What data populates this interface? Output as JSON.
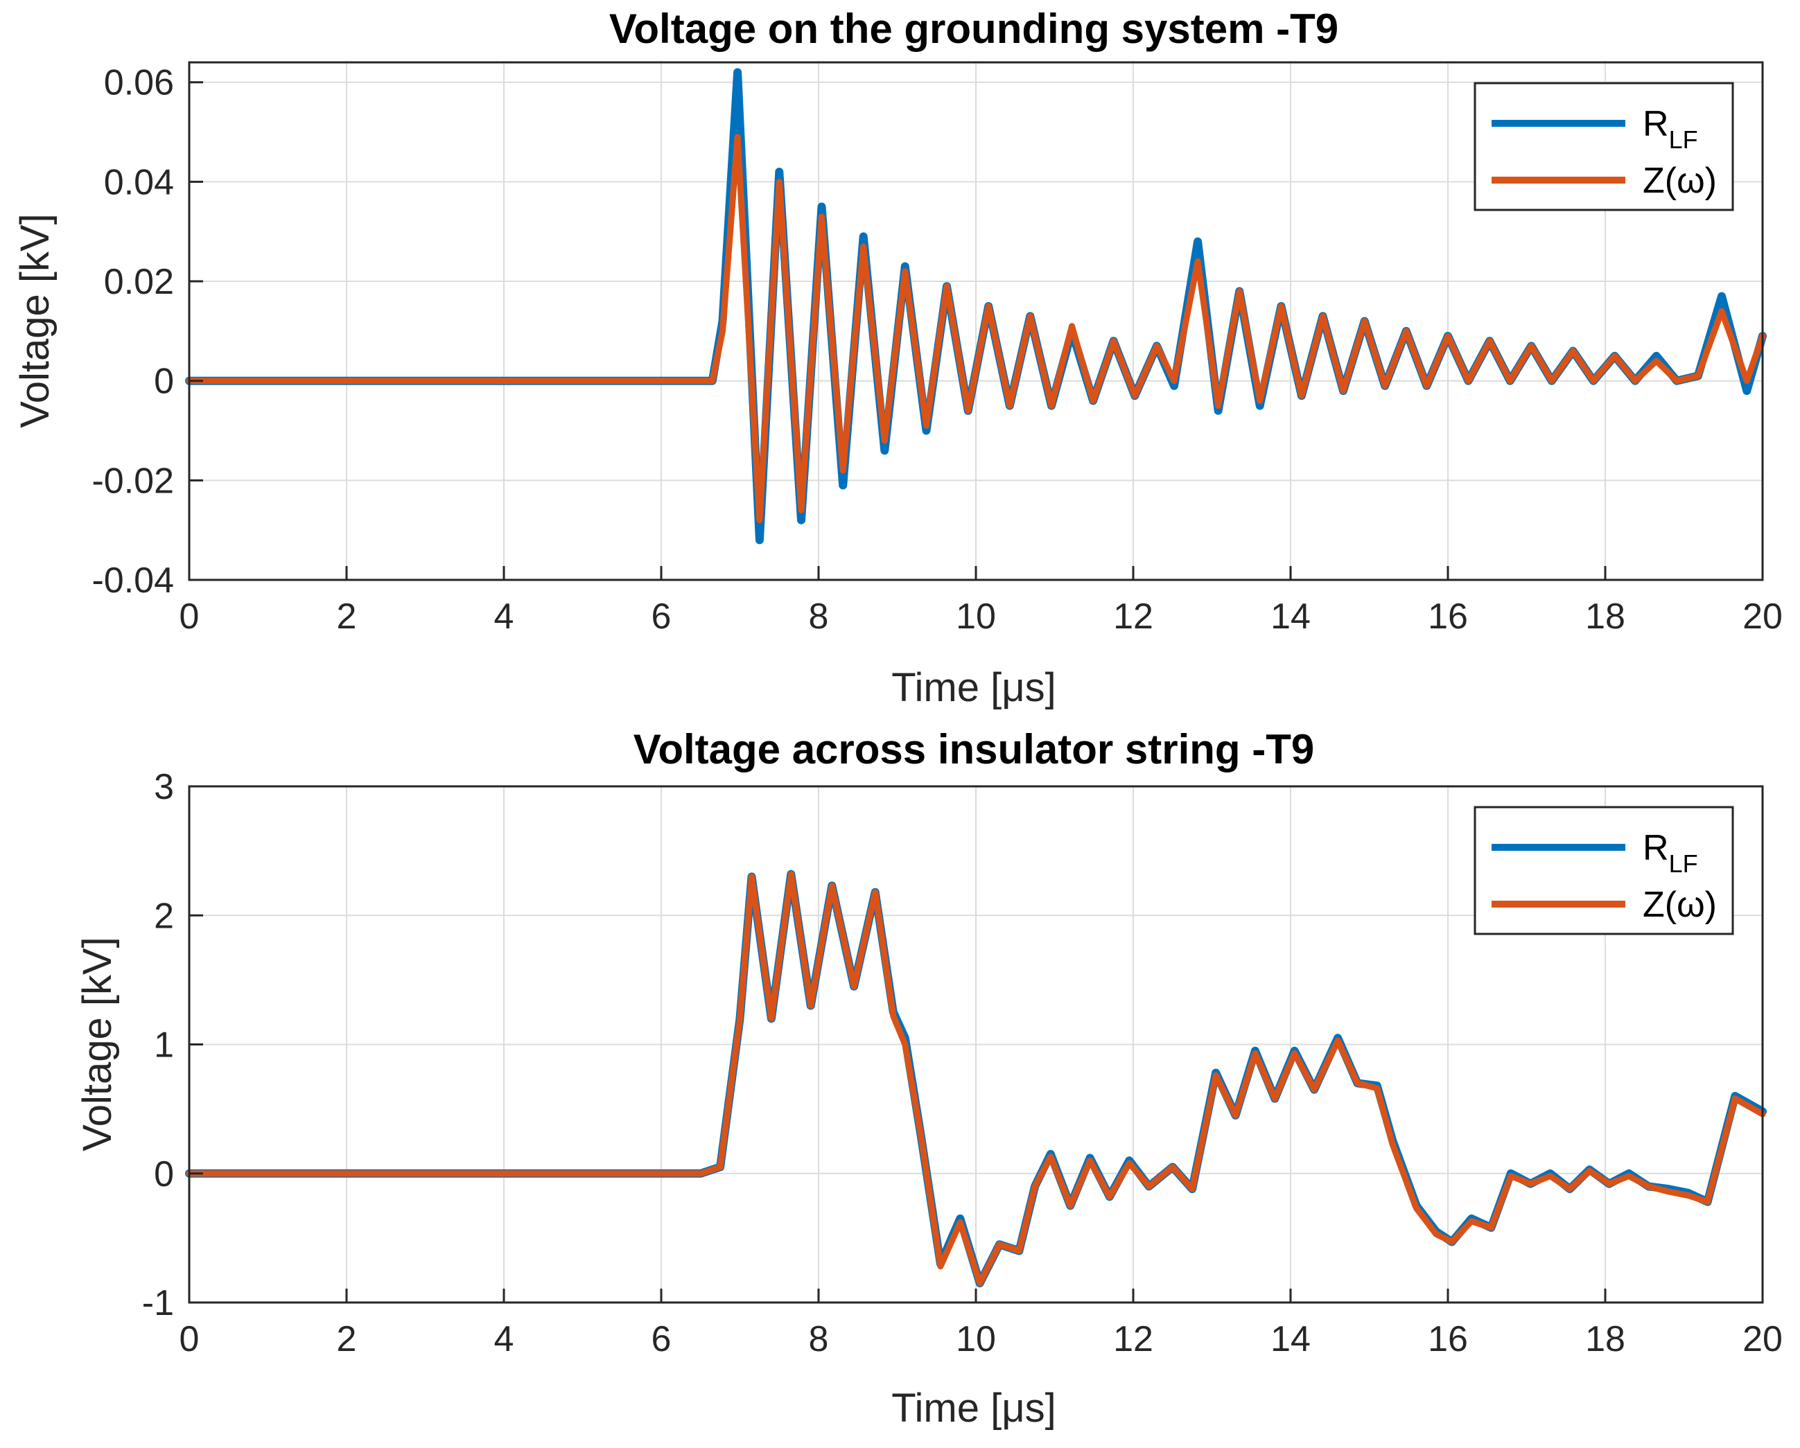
{
  "chart_data": [
    {
      "type": "line",
      "title": "Voltage on the grounding system -T9",
      "xlabel": "Time [μs]",
      "ylabel": "Voltage [kV]",
      "xlim": [
        0,
        20
      ],
      "ylim": [
        -0.04,
        0.064
      ],
      "xticks": [
        0,
        2,
        4,
        6,
        8,
        10,
        12,
        14,
        16,
        18,
        20
      ],
      "xtick_labels": [
        "0",
        "2",
        "4",
        "6",
        "8",
        "10",
        "12",
        "14",
        "16",
        "18",
        "20"
      ],
      "yticks": [
        -0.04,
        -0.02,
        0,
        0.02,
        0.04,
        0.06
      ],
      "ytick_labels": [
        "-0.04",
        "-0.02",
        "0",
        "0.02",
        "0.04",
        "0.06"
      ],
      "grid": true,
      "legend_position": "top-right",
      "series": [
        {
          "name": "R_LF",
          "label_main": "R",
          "label_sub": "LF",
          "color": "#0072BD",
          "x": [
            0,
            6.65,
            6.78,
            6.97,
            7.25,
            7.5,
            7.78,
            8.04,
            8.31,
            8.57,
            8.84,
            9.1,
            9.37,
            9.63,
            9.9,
            10.16,
            10.43,
            10.69,
            10.96,
            11.22,
            11.49,
            11.75,
            12.02,
            12.3,
            12.52,
            12.82,
            13.08,
            13.35,
            13.61,
            13.88,
            14.14,
            14.41,
            14.67,
            14.94,
            15.2,
            15.47,
            15.73,
            16.0,
            16.26,
            16.53,
            16.79,
            17.06,
            17.32,
            17.59,
            17.85,
            18.12,
            18.38,
            18.65,
            18.91,
            19.18,
            19.48,
            19.8,
            20.0
          ],
          "y": [
            0,
            0,
            0.012,
            0.062,
            -0.032,
            0.042,
            -0.028,
            0.035,
            -0.021,
            0.029,
            -0.014,
            0.023,
            -0.01,
            0.019,
            -0.006,
            0.015,
            -0.005,
            0.013,
            -0.005,
            0.01,
            -0.004,
            0.008,
            -0.003,
            0.007,
            -0.001,
            0.028,
            -0.006,
            0.018,
            -0.005,
            0.015,
            -0.003,
            0.013,
            -0.002,
            0.012,
            -0.001,
            0.01,
            -0.001,
            0.009,
            0.0,
            0.008,
            0.0,
            0.007,
            0.0,
            0.006,
            0.0,
            0.005,
            0.0,
            0.005,
            0.0,
            0.001,
            0.017,
            -0.002,
            0.009
          ]
        },
        {
          "name": "Z(ω)",
          "label_main": "Z(ω)",
          "label_sub": "",
          "color": "#D95319",
          "x": [
            0,
            6.65,
            6.78,
            6.97,
            7.25,
            7.5,
            7.78,
            8.04,
            8.31,
            8.57,
            8.84,
            9.1,
            9.37,
            9.63,
            9.9,
            10.16,
            10.43,
            10.69,
            10.96,
            11.22,
            11.49,
            11.75,
            12.02,
            12.3,
            12.52,
            12.82,
            13.08,
            13.35,
            13.61,
            13.88,
            14.14,
            14.41,
            14.67,
            14.94,
            15.2,
            15.47,
            15.73,
            16.0,
            16.26,
            16.53,
            16.79,
            17.06,
            17.32,
            17.59,
            17.85,
            18.12,
            18.38,
            18.65,
            18.91,
            19.18,
            19.48,
            19.8,
            20.0
          ],
          "y": [
            0,
            0,
            0.01,
            0.049,
            -0.028,
            0.04,
            -0.026,
            0.033,
            -0.018,
            0.027,
            -0.012,
            0.022,
            -0.009,
            0.019,
            -0.006,
            0.015,
            -0.005,
            0.013,
            -0.005,
            0.011,
            -0.004,
            0.008,
            -0.003,
            0.007,
            0.0,
            0.024,
            -0.005,
            0.018,
            -0.004,
            0.015,
            -0.003,
            0.013,
            -0.002,
            0.012,
            -0.001,
            0.01,
            -0.001,
            0.009,
            0.0,
            0.008,
            0.0,
            0.007,
            0.0,
            0.006,
            0.0,
            0.005,
            0.0,
            0.004,
            0.0,
            0.001,
            0.014,
            0.0,
            0.009
          ]
        }
      ]
    },
    {
      "type": "line",
      "title": "Voltage across insulator string -T9",
      "xlabel": "Time [μs]",
      "ylabel": "Voltage [kV]",
      "xlim": [
        0,
        20
      ],
      "ylim": [
        -1,
        3
      ],
      "xticks": [
        0,
        2,
        4,
        6,
        8,
        10,
        12,
        14,
        16,
        18,
        20
      ],
      "xtick_labels": [
        "0",
        "2",
        "4",
        "6",
        "8",
        "10",
        "12",
        "14",
        "16",
        "18",
        "20"
      ],
      "yticks": [
        -1,
        0,
        1,
        2,
        3
      ],
      "ytick_labels": [
        "-1",
        "0",
        "1",
        "2",
        "3"
      ],
      "grid": true,
      "legend_position": "top-right",
      "series": [
        {
          "name": "R_LF",
          "label_main": "R",
          "label_sub": "LF",
          "color": "#0072BD",
          "x": [
            0,
            6.5,
            6.75,
            7.0,
            7.15,
            7.4,
            7.65,
            7.9,
            8.17,
            8.45,
            8.72,
            8.95,
            9.1,
            9.3,
            9.55,
            9.8,
            10.05,
            10.3,
            10.55,
            10.75,
            10.95,
            11.2,
            11.45,
            11.7,
            11.95,
            12.2,
            12.5,
            12.75,
            13.05,
            13.3,
            13.55,
            13.8,
            14.05,
            14.3,
            14.6,
            14.85,
            15.1,
            15.3,
            15.6,
            15.85,
            16.05,
            16.3,
            16.55,
            16.8,
            17.05,
            17.3,
            17.55,
            17.8,
            18.05,
            18.3,
            18.55,
            18.8,
            19.05,
            19.3,
            19.65,
            20.0
          ],
          "y": [
            0,
            0,
            0.05,
            1.2,
            2.3,
            1.2,
            2.32,
            1.3,
            2.23,
            1.45,
            2.18,
            1.25,
            1.05,
            0.3,
            -0.7,
            -0.35,
            -0.85,
            -0.55,
            -0.6,
            -0.1,
            0.15,
            -0.25,
            0.12,
            -0.18,
            0.1,
            -0.1,
            0.05,
            -0.12,
            0.78,
            0.45,
            0.95,
            0.58,
            0.95,
            0.65,
            1.05,
            0.7,
            0.68,
            0.25,
            -0.25,
            -0.45,
            -0.53,
            -0.35,
            -0.42,
            0.0,
            -0.08,
            0.0,
            -0.12,
            0.03,
            -0.08,
            0.0,
            -0.1,
            -0.12,
            -0.15,
            -0.22,
            0.6,
            0.48
          ]
        },
        {
          "name": "Z(ω)",
          "label_main": "Z(ω)",
          "label_sub": "",
          "color": "#D95319",
          "x": [
            0,
            6.5,
            6.75,
            7.0,
            7.15,
            7.4,
            7.65,
            7.9,
            8.17,
            8.45,
            8.72,
            8.95,
            9.1,
            9.3,
            9.55,
            9.8,
            10.05,
            10.3,
            10.55,
            10.75,
            10.95,
            11.2,
            11.45,
            11.7,
            11.95,
            12.2,
            12.5,
            12.75,
            13.05,
            13.3,
            13.55,
            13.8,
            14.05,
            14.3,
            14.6,
            14.85,
            15.1,
            15.3,
            15.6,
            15.85,
            16.05,
            16.3,
            16.55,
            16.8,
            17.05,
            17.3,
            17.55,
            17.8,
            18.05,
            18.3,
            18.55,
            18.8,
            19.05,
            19.3,
            19.65,
            20.0
          ],
          "y": [
            0,
            0,
            0.05,
            1.2,
            2.3,
            1.2,
            2.32,
            1.3,
            2.23,
            1.45,
            2.18,
            1.22,
            1.0,
            0.3,
            -0.72,
            -0.38,
            -0.85,
            -0.55,
            -0.6,
            -0.1,
            0.13,
            -0.25,
            0.1,
            -0.18,
            0.08,
            -0.1,
            0.05,
            -0.12,
            0.76,
            0.45,
            0.93,
            0.58,
            0.93,
            0.65,
            1.03,
            0.7,
            0.66,
            0.22,
            -0.27,
            -0.47,
            -0.53,
            -0.37,
            -0.42,
            -0.02,
            -0.08,
            -0.02,
            -0.12,
            0.02,
            -0.08,
            -0.02,
            -0.1,
            -0.14,
            -0.17,
            -0.22,
            0.58,
            0.46
          ]
        }
      ]
    }
  ]
}
